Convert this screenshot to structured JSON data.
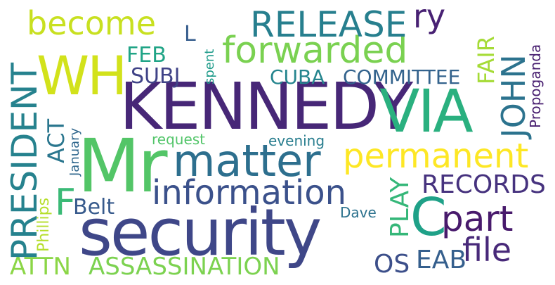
{
  "word_cloud": {
    "words": [
      {
        "id": "kennedy",
        "text": "KENNEDY",
        "color": "#472777"
      },
      {
        "id": "mr",
        "text": "Mr",
        "color": "#53c567"
      },
      {
        "id": "security",
        "text": "security",
        "color": "#3f4788"
      },
      {
        "id": "via",
        "text": "VIA",
        "color": "#2ab07f"
      },
      {
        "id": "wh",
        "text": "WH",
        "color": "#d2e21b"
      },
      {
        "id": "forwarded",
        "text": "forwarded",
        "color": "#7ad151"
      },
      {
        "id": "matter",
        "text": "matter",
        "color": "#2d6f8e"
      },
      {
        "id": "information",
        "text": "information",
        "color": "#3b518b"
      },
      {
        "id": "c",
        "text": "C",
        "color": "#1fa188"
      },
      {
        "id": "president",
        "text": "PRESIDENT",
        "color": "#26828e"
      },
      {
        "id": "release",
        "text": "RELEASE",
        "color": "#277f8e"
      },
      {
        "id": "become",
        "text": "become",
        "color": "#c8e020"
      },
      {
        "id": "permanent",
        "text": "permanent",
        "color": "#fde725"
      },
      {
        "id": "part",
        "text": "part",
        "color": "#481a6c"
      },
      {
        "id": "file",
        "text": "file",
        "color": "#482979"
      },
      {
        "id": "john",
        "text": "JOHN",
        "color": "#2c738e"
      },
      {
        "id": "ry",
        "text": "ry",
        "color": "#482173"
      },
      {
        "id": "records",
        "text": "RECORDS",
        "color": "#46327e"
      },
      {
        "id": "f",
        "text": "F",
        "color": "#3aba76"
      },
      {
        "id": "attn",
        "text": "ATTN",
        "color": "#8bd646"
      },
      {
        "id": "assassination",
        "text": "ASSASSINATION",
        "color": "#7cd250"
      },
      {
        "id": "fair",
        "text": "FAIR",
        "color": "#a5db36"
      },
      {
        "id": "act",
        "text": "ACT",
        "color": "#2a768e"
      },
      {
        "id": "committee",
        "text": "COMMITTEE",
        "color": "#33638d"
      },
      {
        "id": "cuba",
        "text": "CUBA",
        "color": "#25858e"
      },
      {
        "id": "subj",
        "text": "SUBJ",
        "color": "#404387"
      },
      {
        "id": "feb",
        "text": "FEB",
        "color": "#20a486"
      },
      {
        "id": "l",
        "text": "L",
        "color": "#365d8d"
      },
      {
        "id": "play",
        "text": "PLAY",
        "color": "#35b779"
      },
      {
        "id": "belt",
        "text": "Belt",
        "color": "#375a8c"
      },
      {
        "id": "os",
        "text": "OS",
        "color": "#3c4f8a"
      },
      {
        "id": "eab",
        "text": "EAB",
        "color": "#355f8d"
      },
      {
        "id": "propoganda",
        "text": "Propoganda",
        "color": "#481f70"
      },
      {
        "id": "phillips",
        "text": "Phillips",
        "color": "#b5de2b"
      },
      {
        "id": "january",
        "text": "January",
        "color": "#31688e"
      },
      {
        "id": "spent",
        "text": "spent",
        "color": "#1e9b8a"
      },
      {
        "id": "request",
        "text": "request",
        "color": "#52c569"
      },
      {
        "id": "evening",
        "text": "evening",
        "color": "#287d8e"
      },
      {
        "id": "dave",
        "text": "Dave",
        "color": "#2c728e"
      }
    ]
  }
}
